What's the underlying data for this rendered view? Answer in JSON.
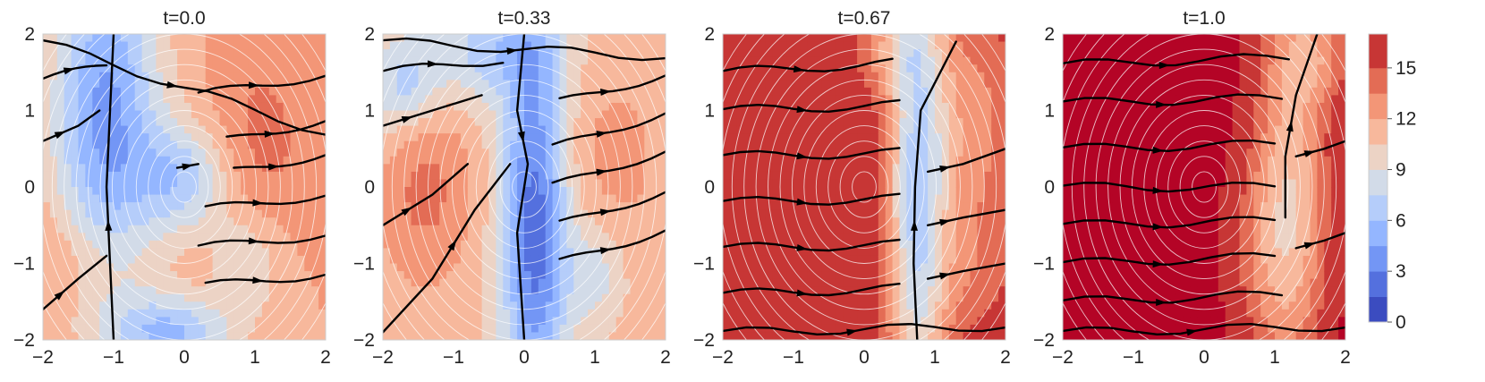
{
  "chart_data": {
    "type": "heatmap",
    "colormap": "coolwarm",
    "panels": [
      {
        "title": "t=0.0",
        "xlim": [
          -2,
          2
        ],
        "ylim": [
          -2,
          2
        ],
        "xticks": [
          "−2",
          "−1",
          "0",
          "1",
          "2"
        ],
        "yticks": [
          "2",
          "1",
          "0",
          "−1",
          "−2"
        ]
      },
      {
        "title": "t=0.33",
        "xlim": [
          -2,
          2
        ],
        "ylim": [
          -2,
          2
        ],
        "xticks": [
          "−2",
          "−1",
          "0",
          "1",
          "2"
        ],
        "yticks": [
          "2",
          "1",
          "0",
          "−1",
          "−2"
        ]
      },
      {
        "title": "t=0.67",
        "xlim": [
          -2,
          2
        ],
        "ylim": [
          -2,
          2
        ],
        "xticks": [
          "−2",
          "−1",
          "0",
          "1",
          "2"
        ],
        "yticks": [
          "2",
          "1",
          "0",
          "−1",
          "−2"
        ]
      },
      {
        "title": "t=1.0",
        "xlim": [
          -2,
          2
        ],
        "ylim": [
          -2,
          2
        ],
        "xticks": [
          "−2",
          "−1",
          "0",
          "1",
          "2"
        ],
        "yticks": [
          "2",
          "1",
          "0",
          "−1",
          "−2"
        ]
      }
    ],
    "colorbar": {
      "range": [
        0,
        17
      ],
      "ticks": [
        "0",
        "3",
        "6",
        "9",
        "12",
        "15"
      ],
      "levels": [
        0,
        1.5,
        3,
        4.5,
        6,
        7.5,
        9,
        10.5,
        12,
        13.5,
        15,
        17
      ],
      "colors": [
        "#3b4cc0",
        "#5470de",
        "#7396f5",
        "#94b6ff",
        "#b5cdfa",
        "#d2dbe8",
        "#ecd3c5",
        "#f7b89c",
        "#f39677",
        "#e36c55",
        "#c73635",
        "#b40426"
      ]
    },
    "legend": "none",
    "grid": false
  }
}
